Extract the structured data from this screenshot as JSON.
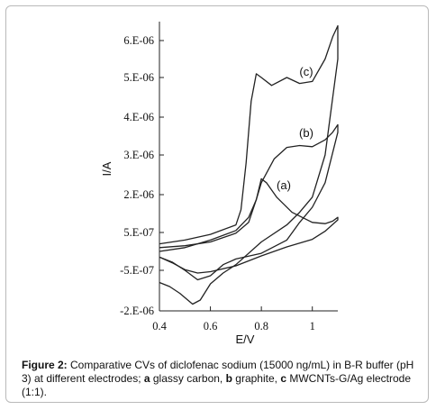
{
  "chart_data": {
    "type": "line",
    "xlabel": "E/V",
    "ylabel": "I/A",
    "xlim": [
      0.4,
      1.1
    ],
    "ylim": [
      -2e-06,
      6.5e-06
    ],
    "x_ticks": [
      0.4,
      0.6,
      0.8,
      1.0
    ],
    "x_tick_labels": [
      "0.4",
      "0.6",
      "0.8",
      "1"
    ],
    "y_ticks": [
      6e-06,
      5e-06,
      4e-06,
      3e-06,
      2e-06,
      5e-07,
      -5e-07,
      -2e-06
    ],
    "y_tick_labels": [
      "6.E-06",
      "5.E-06",
      "4.E-06",
      "3.E-06",
      "2.E-06",
      "5.E-07",
      "-5.E-07",
      "-2.E-06"
    ],
    "grid": false,
    "series": [
      {
        "name": "(a)",
        "line_color": "#222222",
        "forward": [
          [
            0.4,
            0.1
          ],
          [
            0.5,
            0.15
          ],
          [
            0.6,
            0.25
          ],
          [
            0.7,
            0.48
          ],
          [
            0.75,
            0.9
          ],
          [
            0.78,
            1.8
          ],
          [
            0.8,
            2.4
          ],
          [
            0.82,
            2.3
          ],
          [
            0.86,
            1.9
          ],
          [
            0.92,
            1.3
          ],
          [
            1.0,
            0.9
          ],
          [
            1.05,
            0.85
          ],
          [
            1.08,
            0.95
          ],
          [
            1.1,
            1.1
          ]
        ],
        "reverse": [
          [
            1.1,
            1.0
          ],
          [
            1.05,
            0.55
          ],
          [
            1.0,
            0.32
          ],
          [
            0.9,
            0.12
          ],
          [
            0.8,
            -0.12
          ],
          [
            0.7,
            -0.38
          ],
          [
            0.6,
            -0.55
          ],
          [
            0.55,
            -0.6
          ],
          [
            0.5,
            -0.48
          ],
          [
            0.45,
            -0.3
          ],
          [
            0.4,
            -0.15
          ]
        ]
      },
      {
        "name": "(b)",
        "line_color": "#222222",
        "forward": [
          [
            0.4,
            0.0
          ],
          [
            0.5,
            0.1
          ],
          [
            0.6,
            0.3
          ],
          [
            0.7,
            0.58
          ],
          [
            0.75,
            1.1
          ],
          [
            0.78,
            1.8
          ],
          [
            0.8,
            2.3
          ],
          [
            0.85,
            2.9
          ],
          [
            0.9,
            3.2
          ],
          [
            0.95,
            3.25
          ],
          [
            1.0,
            3.22
          ],
          [
            1.05,
            3.4
          ],
          [
            1.08,
            3.6
          ],
          [
            1.1,
            3.8
          ]
        ],
        "reverse": [
          [
            1.1,
            3.6
          ],
          [
            1.05,
            2.3
          ],
          [
            1.0,
            1.5
          ],
          [
            0.95,
            0.9
          ],
          [
            0.9,
            0.3
          ],
          [
            0.8,
            -0.05
          ],
          [
            0.7,
            -0.2
          ],
          [
            0.65,
            -0.35
          ],
          [
            0.6,
            -0.7
          ],
          [
            0.55,
            -0.85
          ],
          [
            0.5,
            -0.5
          ],
          [
            0.45,
            -0.28
          ],
          [
            0.4,
            -0.15
          ]
        ]
      },
      {
        "name": "(c)",
        "line_color": "#222222",
        "forward": [
          [
            0.4,
            0.2
          ],
          [
            0.5,
            0.3
          ],
          [
            0.6,
            0.45
          ],
          [
            0.7,
            0.8
          ],
          [
            0.72,
            1.4
          ],
          [
            0.74,
            2.8
          ],
          [
            0.76,
            4.4
          ],
          [
            0.78,
            5.1
          ],
          [
            0.8,
            5.0
          ],
          [
            0.84,
            4.8
          ],
          [
            0.9,
            5.0
          ],
          [
            0.95,
            4.85
          ],
          [
            1.0,
            4.9
          ],
          [
            1.05,
            5.5
          ],
          [
            1.08,
            6.1
          ],
          [
            1.1,
            6.4
          ]
        ],
        "reverse": [
          [
            1.1,
            5.5
          ],
          [
            1.05,
            3.0
          ],
          [
            1.0,
            1.9
          ],
          [
            0.95,
            1.3
          ],
          [
            0.9,
            0.8
          ],
          [
            0.8,
            0.25
          ],
          [
            0.7,
            -0.35
          ],
          [
            0.65,
            -0.6
          ],
          [
            0.6,
            -1.0
          ],
          [
            0.56,
            -1.6
          ],
          [
            0.53,
            -1.75
          ],
          [
            0.48,
            -1.35
          ],
          [
            0.44,
            -1.1
          ],
          [
            0.4,
            -0.95
          ]
        ]
      }
    ]
  },
  "curve_labels": [
    "(a)",
    "(b)",
    "(c)"
  ],
  "caption": {
    "figure_label": "Figure 2:",
    "text_1": " Comparative CVs of diclofenac sodium (15000 ng/mL) in B-R buffer (pH 3) at different electrodes; ",
    "a_label": "a",
    "a_text": " glassy carbon, ",
    "b_label": "b",
    "b_text": " graphite, ",
    "c_label": "c",
    "c_text": " MWCNTs-G/Ag electrode (1:1)."
  }
}
